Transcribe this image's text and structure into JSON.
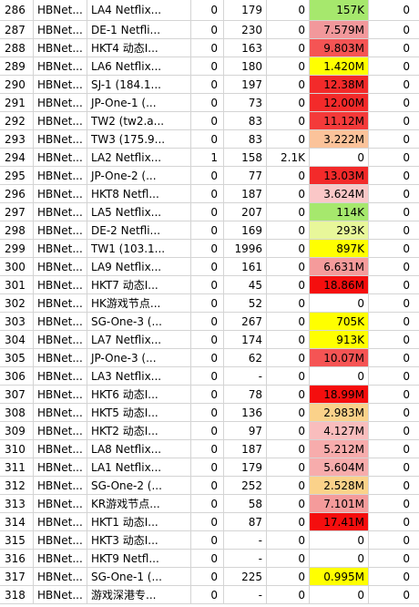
{
  "rows": [
    {
      "idx": "286",
      "group": "HBNet...",
      "name": "LA4 Netflix...",
      "a": "0",
      "b": "179",
      "c": "0",
      "speed": "157K",
      "color": "#a6e86d",
      "last": "0"
    },
    {
      "idx": "287",
      "group": "HBNet...",
      "name": "DE-1 Netfli...",
      "a": "0",
      "b": "230",
      "c": "0",
      "speed": "7.579M",
      "color": "#f2989b",
      "last": "0"
    },
    {
      "idx": "288",
      "group": "HBNet...",
      "name": "HKT4 动态I...",
      "a": "0",
      "b": "163",
      "c": "0",
      "speed": "9.803M",
      "color": "#f55454",
      "last": "0"
    },
    {
      "idx": "289",
      "group": "HBNet...",
      "name": "LA6 Netflix...",
      "a": "0",
      "b": "180",
      "c": "0",
      "speed": "1.420M",
      "color": "#ffff00",
      "last": "0"
    },
    {
      "idx": "290",
      "group": "HBNet...",
      "name": "SJ-1 (184.1...",
      "a": "0",
      "b": "197",
      "c": "0",
      "speed": "12.38M",
      "color": "#f32a2a",
      "last": "0"
    },
    {
      "idx": "291",
      "group": "HBNet...",
      "name": "JP-One-1 (...",
      "a": "0",
      "b": "73",
      "c": "0",
      "speed": "12.00M",
      "color": "#f32a2a",
      "last": "0"
    },
    {
      "idx": "292",
      "group": "HBNet...",
      "name": "TW2 (tw2.a...",
      "a": "0",
      "b": "83",
      "c": "0",
      "speed": "11.12M",
      "color": "#f43a3a",
      "last": "0"
    },
    {
      "idx": "293",
      "group": "HBNet...",
      "name": "TW3 (175.9...",
      "a": "0",
      "b": "83",
      "c": "0",
      "speed": "3.222M",
      "color": "#fbc39a",
      "last": "0"
    },
    {
      "idx": "294",
      "group": "HBNet...",
      "name": "LA2 Netflix...",
      "a": "1",
      "b": "158",
      "c": "2.1K",
      "speed": "0",
      "color": "",
      "last": "0"
    },
    {
      "idx": "295",
      "group": "HBNet...",
      "name": "JP-One-2 (...",
      "a": "0",
      "b": "77",
      "c": "0",
      "speed": "13.03M",
      "color": "#f32a2a",
      "last": "0"
    },
    {
      "idx": "296",
      "group": "HBNet...",
      "name": "HKT8 Netfl...",
      "a": "0",
      "b": "187",
      "c": "0",
      "speed": "3.624M",
      "color": "#fac7c7",
      "last": "0"
    },
    {
      "idx": "297",
      "group": "HBNet...",
      "name": "LA5 Netflix...",
      "a": "0",
      "b": "207",
      "c": "0",
      "speed": "114K",
      "color": "#a6e86d",
      "last": "0"
    },
    {
      "idx": "298",
      "group": "HBNet...",
      "name": "DE-2 Netfli...",
      "a": "0",
      "b": "169",
      "c": "0",
      "speed": "293K",
      "color": "#e8f79a",
      "last": "0"
    },
    {
      "idx": "299",
      "group": "HBNet...",
      "name": "TW1 (103.1...",
      "a": "0",
      "b": "1996",
      "c": "0",
      "speed": "897K",
      "color": "#ffff00",
      "last": "0"
    },
    {
      "idx": "300",
      "group": "HBNet...",
      "name": "LA9 Netflix...",
      "a": "0",
      "b": "161",
      "c": "0",
      "speed": "6.631M",
      "color": "#f59b9b",
      "last": "0"
    },
    {
      "idx": "301",
      "group": "HBNet...",
      "name": "HKT7 动态I...",
      "a": "0",
      "b": "45",
      "c": "0",
      "speed": "18.86M",
      "color": "#f50e0e",
      "last": "0"
    },
    {
      "idx": "302",
      "group": "HBNet...",
      "name": "HK游戏节点...",
      "a": "0",
      "b": "52",
      "c": "0",
      "speed": "0",
      "color": "",
      "last": "0"
    },
    {
      "idx": "303",
      "group": "HBNet...",
      "name": "SG-One-3 (...",
      "a": "0",
      "b": "267",
      "c": "0",
      "speed": "705K",
      "color": "#ffff00",
      "last": "0"
    },
    {
      "idx": "304",
      "group": "HBNet...",
      "name": "LA7 Netflix...",
      "a": "0",
      "b": "174",
      "c": "0",
      "speed": "913K",
      "color": "#ffff00",
      "last": "0"
    },
    {
      "idx": "305",
      "group": "HBNet...",
      "name": "JP-One-3 (...",
      "a": "0",
      "b": "62",
      "c": "0",
      "speed": "10.07M",
      "color": "#f55454",
      "last": "0"
    },
    {
      "idx": "306",
      "group": "HBNet...",
      "name": "LA3 Netflix...",
      "a": "0",
      "b": "-",
      "c": "0",
      "speed": "0",
      "color": "",
      "last": "0"
    },
    {
      "idx": "307",
      "group": "HBNet...",
      "name": "HKT6 动态I...",
      "a": "0",
      "b": "78",
      "c": "0",
      "speed": "18.99M",
      "color": "#f50e0e",
      "last": "0"
    },
    {
      "idx": "308",
      "group": "HBNet...",
      "name": "HKT5 动态I...",
      "a": "0",
      "b": "136",
      "c": "0",
      "speed": "2.983M",
      "color": "#fbd28a",
      "last": "0"
    },
    {
      "idx": "309",
      "group": "HBNet...",
      "name": "HKT2 动态I...",
      "a": "0",
      "b": "97",
      "c": "0",
      "speed": "4.127M",
      "color": "#f9bdbd",
      "last": "0"
    },
    {
      "idx": "310",
      "group": "HBNet...",
      "name": "LA8 Netflix...",
      "a": "0",
      "b": "187",
      "c": "0",
      "speed": "5.212M",
      "color": "#f7acac",
      "last": "0"
    },
    {
      "idx": "311",
      "group": "HBNet...",
      "name": "LA1 Netflix...",
      "a": "0",
      "b": "179",
      "c": "0",
      "speed": "5.604M",
      "color": "#f7acac",
      "last": "0"
    },
    {
      "idx": "312",
      "group": "HBNet...",
      "name": "SG-One-2 (...",
      "a": "0",
      "b": "252",
      "c": "0",
      "speed": "2.528M",
      "color": "#fbd28a",
      "last": "0"
    },
    {
      "idx": "313",
      "group": "HBNet...",
      "name": "KR游戏节点...",
      "a": "0",
      "b": "58",
      "c": "0",
      "speed": "7.101M",
      "color": "#f59b9b",
      "last": "0"
    },
    {
      "idx": "314",
      "group": "HBNet...",
      "name": "HKT1 动态I...",
      "a": "0",
      "b": "87",
      "c": "0",
      "speed": "17.41M",
      "color": "#f50e0e",
      "last": "0"
    },
    {
      "idx": "315",
      "group": "HBNet...",
      "name": "HKT3 动态I...",
      "a": "0",
      "b": "-",
      "c": "0",
      "speed": "0",
      "color": "",
      "last": "0"
    },
    {
      "idx": "316",
      "group": "HBNet...",
      "name": "HKT9 Netfl...",
      "a": "0",
      "b": "-",
      "c": "0",
      "speed": "0",
      "color": "",
      "last": "0"
    },
    {
      "idx": "317",
      "group": "HBNet...",
      "name": "SG-One-1 (...",
      "a": "0",
      "b": "225",
      "c": "0",
      "speed": "0.995M",
      "color": "#ffff00",
      "last": "0"
    },
    {
      "idx": "318",
      "group": "HBNet...",
      "name": "游戏深港专...",
      "a": "0",
      "b": "-",
      "c": "0",
      "speed": "0",
      "color": "",
      "last": "0"
    }
  ]
}
